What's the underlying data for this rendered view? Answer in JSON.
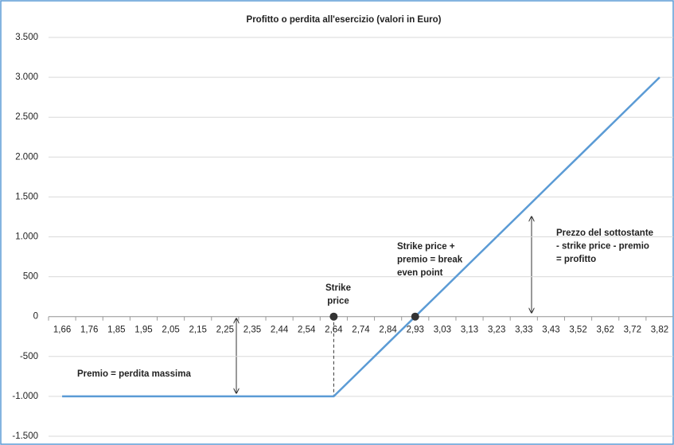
{
  "chart_data": {
    "type": "line",
    "title": "Profitto o perdita all'esercizio (valori in Euro)",
    "categories": [
      "1,66",
      "1,76",
      "1,85",
      "1,95",
      "2,05",
      "2,15",
      "2,25",
      "2,35",
      "2,44",
      "2,54",
      "2,64",
      "2,74",
      "2,84",
      "2,93",
      "3,03",
      "3,13",
      "3,23",
      "3,33",
      "3,43",
      "3,52",
      "3,62",
      "3,72",
      "3,82"
    ],
    "series": [
      {
        "color": "#5b9bd5",
        "values": [
          -1000,
          -1000,
          -1000,
          -1000,
          -1000,
          -1000,
          -1000,
          -1000,
          -1000,
          -1000,
          -1000,
          -667,
          -333,
          0,
          333,
          667,
          1000,
          1333,
          1667,
          2000,
          2333,
          2667,
          3000
        ]
      }
    ],
    "ylim": [
      -1500,
      3500
    ],
    "yticks": [
      {
        "value": -1500,
        "label": "-1.500"
      },
      {
        "value": -1000,
        "label": "-1.000"
      },
      -500,
      0,
      500,
      {
        "value": 1000,
        "label": "1.000"
      },
      {
        "value": 1500,
        "label": "1.500"
      },
      {
        "value": 2000,
        "label": "2.000"
      },
      {
        "value": 2500,
        "label": "2.500"
      },
      {
        "value": 3000,
        "label": "3.000"
      },
      {
        "value": 3500,
        "label": "3.500"
      }
    ],
    "grid": true,
    "markers": [
      {
        "x": "2,64",
        "y": 0
      },
      {
        "x": "2,93",
        "y": 0
      }
    ],
    "annotations": [
      {
        "lines": [
          "Strike",
          "price"
        ]
      },
      {
        "lines": [
          "Strike price +",
          "premio = break",
          "even point"
        ]
      },
      {
        "lines": [
          "Prezzo del sottostante",
          "- strike price - premio",
          "= profitto"
        ]
      },
      {
        "lines": [
          "Premio = perdita massima"
        ]
      }
    ]
  }
}
